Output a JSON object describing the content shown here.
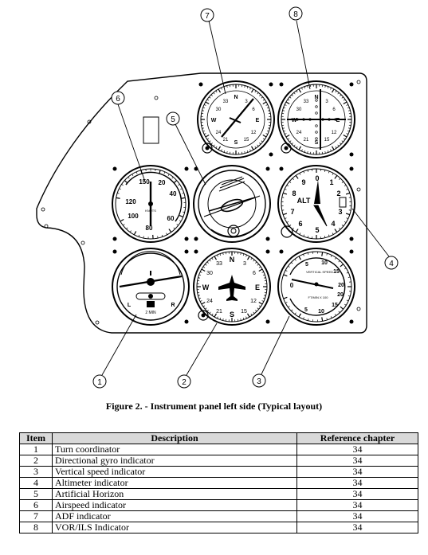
{
  "callouts": [
    "1",
    "2",
    "3",
    "4",
    "5",
    "6",
    "7",
    "8"
  ],
  "instruments": {
    "airspeed": {
      "ticks": [
        "150",
        "20",
        "40",
        "120",
        "60",
        "100",
        "80"
      ],
      "units": "KNOTS"
    },
    "attitude": {
      "label": ""
    },
    "turn_coordinator": {
      "left": "L",
      "right": "R",
      "label": "2 MIN"
    },
    "heading": {
      "cardinals": [
        "N",
        "E",
        "S",
        "W"
      ],
      "numbers": [
        "3",
        "6",
        "12",
        "15",
        "21",
        "24",
        "30",
        "33"
      ]
    },
    "altimeter": {
      "label": "ALT",
      "digits": [
        "9",
        "0",
        "1",
        "2",
        "3",
        "4",
        "5",
        "6",
        "7",
        "8"
      ]
    },
    "vsi": {
      "title": "VERTICAL SPEED",
      "units": "FT/MIN X 100",
      "numbers": [
        "5",
        "10",
        "15",
        "20",
        "0",
        "5",
        "10",
        "15",
        "20"
      ]
    },
    "adf": {
      "cardinals": [
        "N",
        "E",
        "S",
        "W"
      ],
      "numbers": [
        "3",
        "6",
        "12",
        "15",
        "21",
        "24",
        "30",
        "33"
      ]
    },
    "vor": {
      "cardinals": [
        "N",
        "E",
        "S",
        "W"
      ],
      "numbers": [
        "3",
        "6",
        "12",
        "15",
        "21",
        "24",
        "30",
        "33"
      ]
    }
  },
  "caption": "Figure 2. - Instrument panel left side (Typical layout)",
  "table": {
    "headers": [
      "Item",
      "Description",
      "Reference chapter"
    ],
    "rows": [
      [
        "1",
        "Turn coordinator",
        "34"
      ],
      [
        "2",
        "Directional gyro indicator",
        "34"
      ],
      [
        "3",
        "Vertical speed indicator",
        "34"
      ],
      [
        "4",
        "Altimeter indicator",
        "34"
      ],
      [
        "5",
        "Artificial Horizon",
        "34"
      ],
      [
        "6",
        "Airspeed indicator",
        "34"
      ],
      [
        "7",
        "ADF indicator",
        "34"
      ],
      [
        "8",
        "VOR/ILS Indicator",
        "34"
      ]
    ]
  }
}
